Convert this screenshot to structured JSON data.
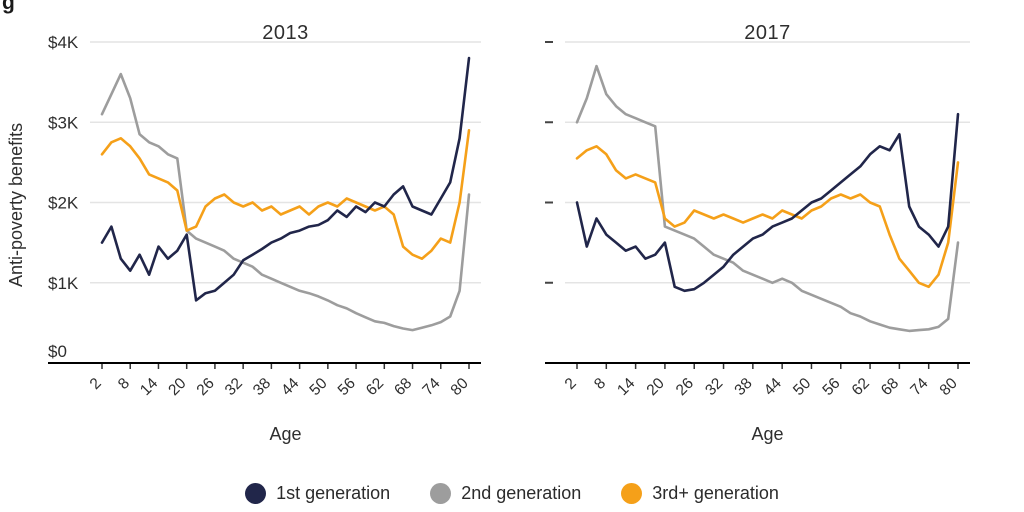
{
  "page": {
    "title_fragment": "g"
  },
  "chart_data": [
    {
      "type": "line",
      "title": "2013",
      "xlabel": "Age",
      "ylabel": "Anti-poverty benefits",
      "ylim": [
        0,
        4000
      ],
      "grid": "horizontal",
      "legend_position": "bottom",
      "xticks": [
        2,
        8,
        14,
        20,
        26,
        32,
        38,
        44,
        50,
        56,
        62,
        68,
        74,
        80
      ],
      "yticks": [
        0,
        1000,
        2000,
        3000,
        4000
      ],
      "ytick_labels": [
        "$0",
        "$1K",
        "$2K",
        "$3K",
        "$4K"
      ],
      "x": [
        2,
        4,
        6,
        8,
        10,
        12,
        14,
        16,
        18,
        20,
        22,
        24,
        26,
        28,
        30,
        32,
        34,
        36,
        38,
        40,
        42,
        44,
        46,
        48,
        50,
        52,
        54,
        56,
        58,
        60,
        62,
        64,
        66,
        68,
        70,
        72,
        74,
        76,
        78,
        80
      ],
      "series": [
        {
          "name": "1st generation",
          "color": "#21264a",
          "values": [
            1500,
            1700,
            1300,
            1150,
            1350,
            1100,
            1450,
            1300,
            1400,
            1600,
            780,
            870,
            900,
            1000,
            1100,
            1280,
            1350,
            1420,
            1500,
            1550,
            1620,
            1650,
            1700,
            1720,
            1780,
            1900,
            1820,
            1950,
            1880,
            2000,
            1950,
            2100,
            2200,
            1950,
            1900,
            1850,
            2050,
            2250,
            2800,
            3800
          ]
        },
        {
          "name": "2nd generation",
          "color": "#9d9d9d",
          "values": [
            3100,
            3350,
            3600,
            3300,
            2850,
            2750,
            2700,
            2600,
            2550,
            1650,
            1550,
            1500,
            1450,
            1400,
            1300,
            1250,
            1200,
            1100,
            1050,
            1000,
            950,
            900,
            870,
            830,
            780,
            720,
            680,
            620,
            570,
            520,
            500,
            460,
            430,
            410,
            440,
            470,
            510,
            580,
            900,
            2100
          ]
        },
        {
          "name": "3rd+ generation",
          "color": "#f5a019",
          "values": [
            2600,
            2750,
            2800,
            2700,
            2550,
            2350,
            2300,
            2250,
            2150,
            1650,
            1700,
            1950,
            2050,
            2100,
            2000,
            1950,
            2000,
            1900,
            1950,
            1850,
            1900,
            1950,
            1850,
            1950,
            2000,
            1950,
            2050,
            2000,
            1950,
            1900,
            1950,
            1850,
            1450,
            1350,
            1300,
            1400,
            1550,
            1500,
            2000,
            2900
          ]
        }
      ]
    },
    {
      "type": "line",
      "title": "2017",
      "xlabel": "Age",
      "ylabel": "Anti-poverty benefits",
      "ylim": [
        0,
        4000
      ],
      "grid": "horizontal",
      "legend_position": "bottom",
      "xticks": [
        2,
        8,
        14,
        20,
        26,
        32,
        38,
        44,
        50,
        56,
        62,
        68,
        74,
        80
      ],
      "yticks": [
        0,
        1000,
        2000,
        3000,
        4000
      ],
      "ytick_labels": [
        "$0",
        "$1K",
        "$2K",
        "$3K",
        "$4K"
      ],
      "x": [
        2,
        4,
        6,
        8,
        10,
        12,
        14,
        16,
        18,
        20,
        22,
        24,
        26,
        28,
        30,
        32,
        34,
        36,
        38,
        40,
        42,
        44,
        46,
        48,
        50,
        52,
        54,
        56,
        58,
        60,
        62,
        64,
        66,
        68,
        70,
        72,
        74,
        76,
        78,
        80
      ],
      "series": [
        {
          "name": "1st generation",
          "color": "#21264a",
          "values": [
            2000,
            1450,
            1800,
            1600,
            1500,
            1400,
            1450,
            1300,
            1350,
            1500,
            950,
            900,
            920,
            1000,
            1100,
            1200,
            1350,
            1450,
            1550,
            1600,
            1700,
            1750,
            1800,
            1900,
            2000,
            2050,
            2150,
            2250,
            2350,
            2450,
            2600,
            2700,
            2650,
            2850,
            1950,
            1700,
            1600,
            1450,
            1700,
            3100
          ]
        },
        {
          "name": "2nd generation",
          "color": "#9d9d9d",
          "values": [
            3000,
            3300,
            3700,
            3350,
            3200,
            3100,
            3050,
            3000,
            2950,
            1700,
            1650,
            1600,
            1550,
            1450,
            1350,
            1300,
            1250,
            1150,
            1100,
            1050,
            1000,
            1050,
            1000,
            900,
            850,
            800,
            750,
            700,
            620,
            580,
            520,
            480,
            440,
            420,
            400,
            410,
            420,
            450,
            550,
            1500
          ]
        },
        {
          "name": "3rd+ generation",
          "color": "#f5a019",
          "values": [
            2550,
            2650,
            2700,
            2600,
            2400,
            2300,
            2350,
            2300,
            2250,
            1800,
            1700,
            1750,
            1900,
            1850,
            1800,
            1850,
            1800,
            1750,
            1800,
            1850,
            1800,
            1900,
            1850,
            1800,
            1900,
            1950,
            2050,
            2100,
            2050,
            2100,
            2000,
            1950,
            1600,
            1300,
            1150,
            1000,
            950,
            1100,
            1500,
            2500
          ]
        }
      ]
    }
  ],
  "style": {
    "gridline_color": "#e4e4e4",
    "axis_color": "#000000",
    "text_color": "#2e2e2e"
  }
}
